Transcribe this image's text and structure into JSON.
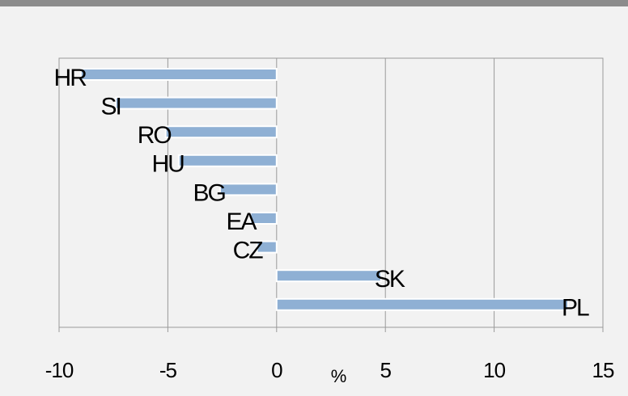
{
  "chart_data": {
    "type": "bar",
    "orientation": "horizontal",
    "categories": [
      "HR",
      "SI",
      "RO",
      "HU",
      "BG",
      "EA",
      "CZ",
      "SK",
      "PL"
    ],
    "values": [
      -9.0,
      -7.4,
      -5.1,
      -4.5,
      -2.6,
      -1.2,
      -0.9,
      4.8,
      13.4
    ],
    "color": "#8fb0d4",
    "x_label": "%",
    "xlim": [
      -10,
      15
    ],
    "xticks": [
      -10,
      -5,
      0,
      5,
      10,
      15
    ],
    "grid": true
  }
}
